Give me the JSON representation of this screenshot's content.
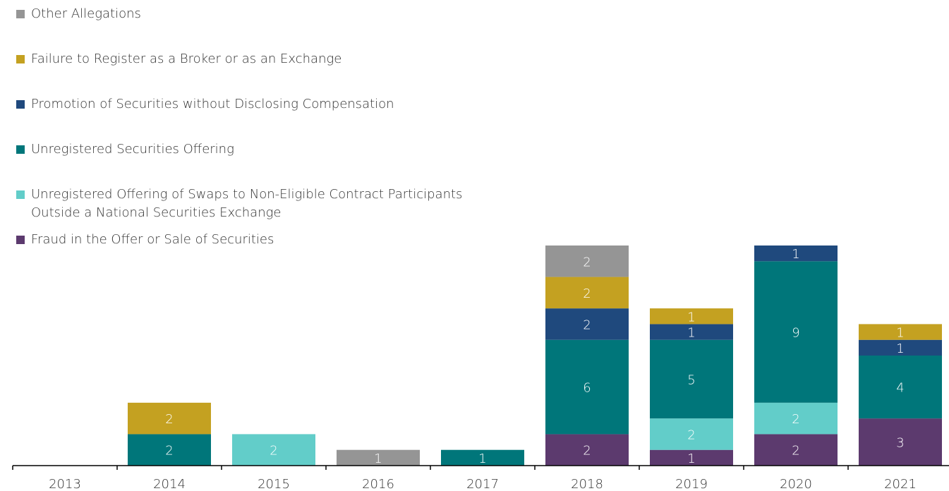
{
  "chart_data": {
    "type": "stacked_bar",
    "categories": [
      "2013",
      "2014",
      "2015",
      "2016",
      "2017",
      "2018",
      "2019",
      "2020",
      "2021"
    ],
    "series": [
      {
        "name": "Fraud in the Offer or Sale of Securities",
        "color": "#5c3a6e",
        "values": [
          null,
          null,
          null,
          null,
          null,
          2,
          1,
          2,
          3
        ]
      },
      {
        "name": "Unregistered Offering of Swaps to Non-Eligible Contract Participants\nOutside a National Securities Exchange",
        "color": "#62cdc9",
        "values": [
          null,
          null,
          2,
          null,
          null,
          null,
          2,
          2,
          null
        ]
      },
      {
        "name": "Unregistered Securities Offering",
        "color": "#00767a",
        "values": [
          null,
          2,
          null,
          null,
          1,
          6,
          5,
          9,
          4
        ]
      },
      {
        "name": "Promotion of Securities without Disclosing Compensation",
        "color": "#1f497d",
        "values": [
          null,
          null,
          null,
          null,
          null,
          2,
          1,
          1,
          1
        ]
      },
      {
        "name": "Failure to Register as a Broker or as an Exchange",
        "color": "#c4a121",
        "values": [
          null,
          2,
          null,
          null,
          null,
          2,
          1,
          null,
          1
        ]
      },
      {
        "name": "Other Allegations",
        "color": "#959595",
        "values": [
          null,
          null,
          null,
          1,
          null,
          2,
          null,
          null,
          null
        ]
      }
    ],
    "ylim": [
      0,
      14
    ]
  }
}
